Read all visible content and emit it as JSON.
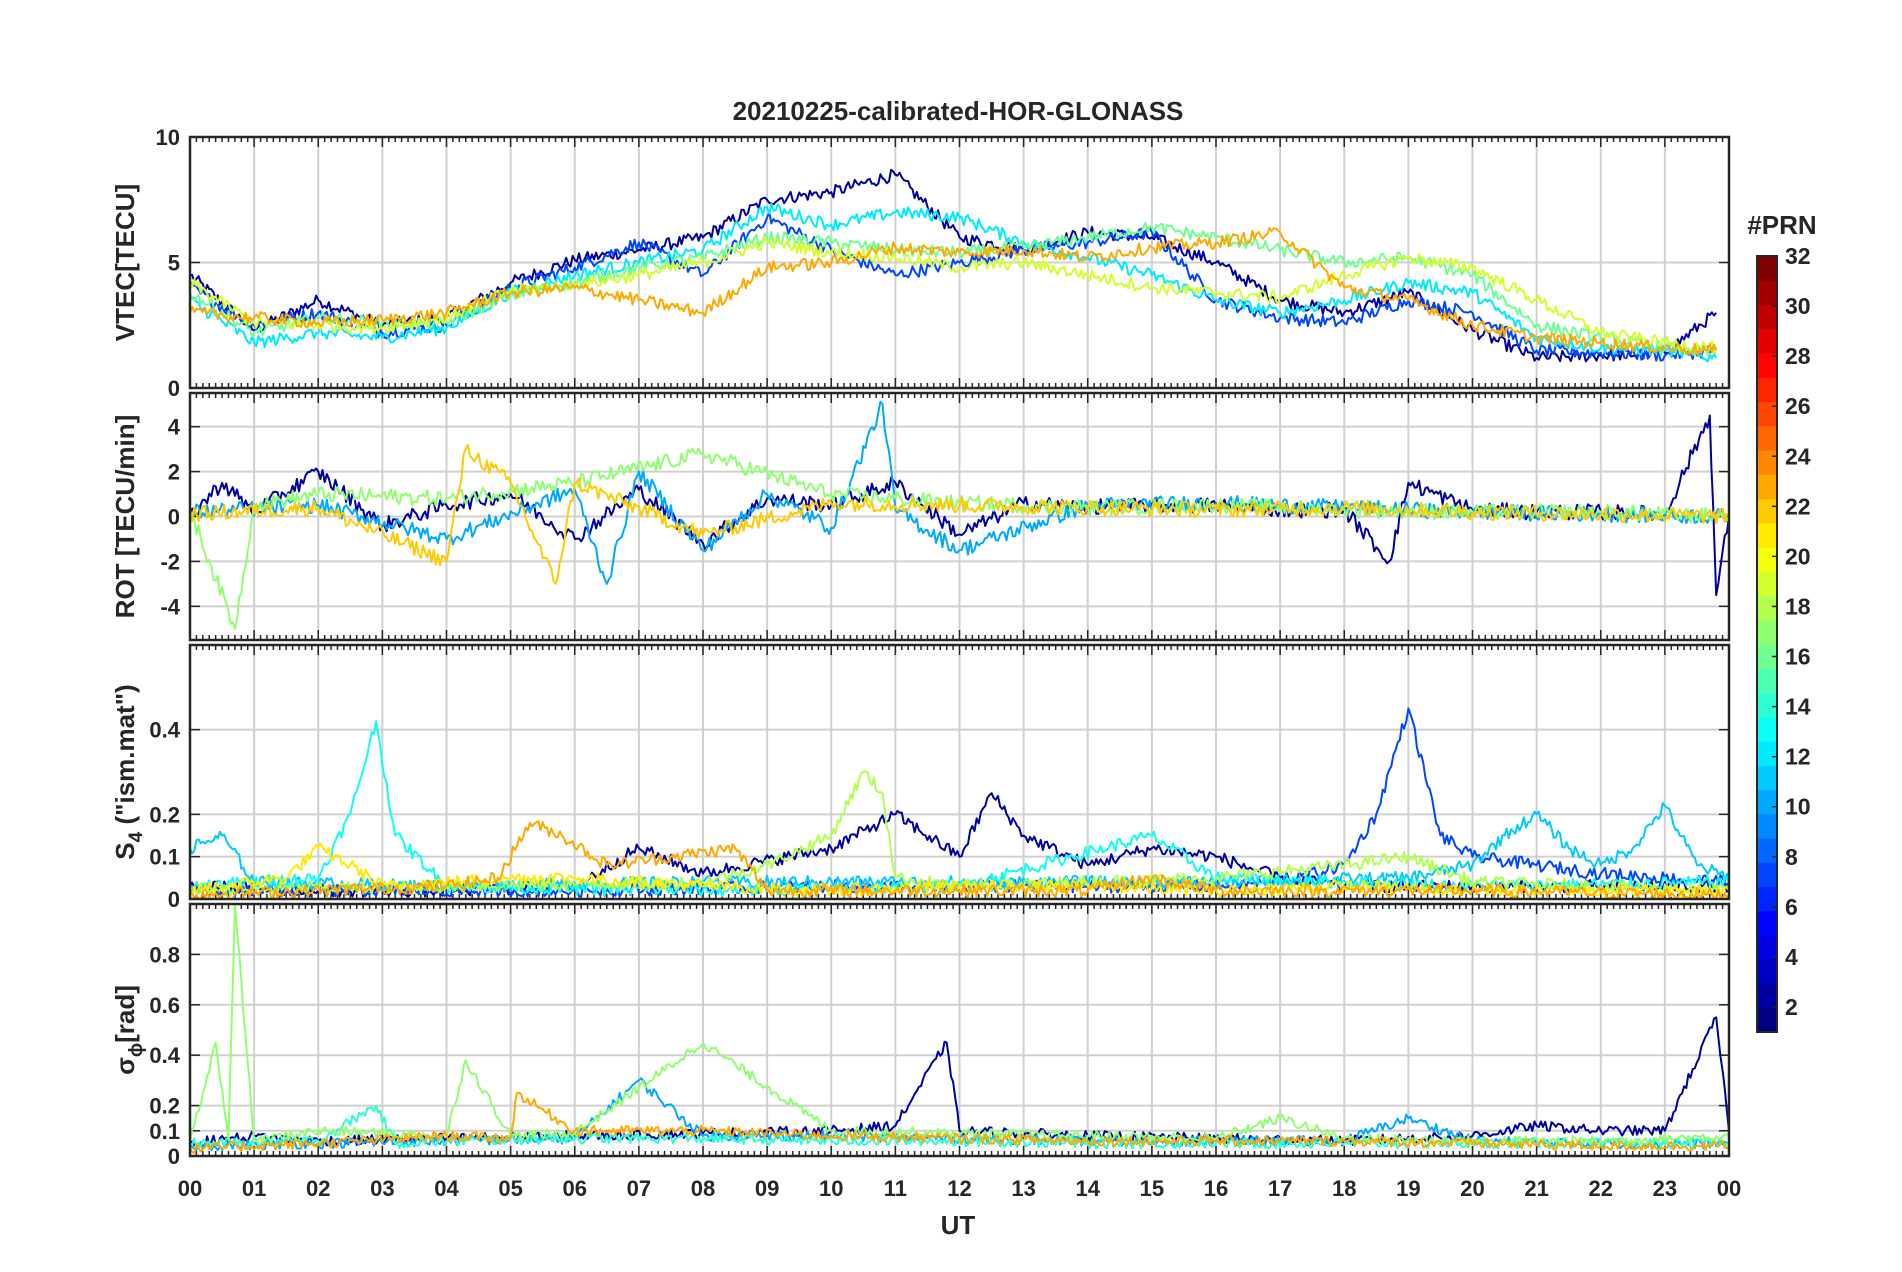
{
  "title": "20210225-calibrated-HOR-GLONASS",
  "colorbar": {
    "label": "#PRN",
    "ticks": [
      "2",
      "4",
      "6",
      "8",
      "10",
      "12",
      "14",
      "16",
      "18",
      "20",
      "22",
      "24",
      "26",
      "28",
      "30",
      "32"
    ],
    "range": [
      1,
      32
    ],
    "colormap": "jet"
  },
  "chart_data": [
    {
      "type": "line",
      "ylabel": "VTEC[TECU]",
      "ylim": [
        0,
        10
      ],
      "yticks": [
        "0",
        "5",
        "10"
      ],
      "grid": true,
      "series": [
        {
          "prn": 2,
          "x": [
            0,
            1,
            2,
            3,
            4,
            5,
            6,
            7,
            8,
            9,
            10,
            11,
            12,
            13,
            14,
            15,
            16,
            17,
            18,
            19,
            20,
            21,
            22,
            23,
            23.8
          ],
          "y": [
            4.5,
            2.3,
            3.5,
            2.5,
            2.8,
            4.2,
            5.1,
            5.5,
            6.0,
            7.5,
            7.8,
            8.5,
            6.0,
            5.5,
            6.2,
            6.0,
            5.0,
            3.5,
            3.0,
            3.8,
            2.3,
            1.2,
            1.3,
            1.4,
            3.0
          ]
        },
        {
          "prn": 7,
          "x": [
            0,
            1,
            2,
            3,
            4,
            5,
            6,
            7,
            8,
            9,
            10,
            11,
            12,
            13,
            14,
            15,
            16,
            17,
            18,
            19,
            20,
            21,
            22,
            23,
            23.8
          ],
          "y": [
            4.0,
            2.5,
            3.0,
            2.2,
            2.5,
            4.0,
            4.8,
            5.8,
            4.5,
            6.8,
            5.5,
            4.5,
            5.0,
            5.5,
            5.8,
            6.2,
            3.5,
            2.8,
            2.6,
            3.5,
            3.0,
            1.5,
            1.4,
            1.3,
            1.5
          ]
        },
        {
          "prn": 12,
          "x": [
            0,
            1,
            2,
            3,
            4,
            5,
            6,
            7,
            8,
            9,
            10,
            11,
            12,
            13,
            14,
            15,
            16,
            17,
            18,
            19,
            20,
            21,
            22,
            23,
            23.8
          ],
          "y": [
            3.5,
            1.8,
            2.2,
            2.0,
            2.4,
            3.8,
            4.5,
            5.0,
            5.5,
            7.2,
            6.5,
            7.0,
            6.8,
            5.8,
            5.2,
            4.5,
            3.5,
            3.0,
            3.5,
            4.2,
            3.8,
            2.0,
            1.6,
            1.5,
            1.2
          ]
        },
        {
          "prn": 16,
          "x": [
            0,
            1,
            2,
            3,
            4,
            5,
            6,
            7,
            8,
            9,
            10,
            11,
            12,
            13,
            14,
            15,
            16,
            17,
            18,
            19,
            20,
            21,
            22,
            23,
            23.8
          ],
          "y": [
            3.8,
            2.2,
            2.8,
            2.6,
            2.6,
            3.7,
            4.2,
            4.8,
            5.2,
            6.0,
            5.8,
            5.5,
            5.4,
            5.6,
            6.0,
            6.4,
            6.0,
            5.5,
            5.0,
            5.2,
            4.5,
            2.5,
            2.0,
            1.6,
            1.4
          ]
        },
        {
          "prn": 19,
          "x": [
            0,
            1,
            2,
            3,
            4,
            5,
            6,
            7,
            8,
            9,
            10,
            11,
            12,
            13,
            14,
            15,
            16,
            17,
            18,
            19,
            20,
            21,
            22,
            23,
            23.8
          ],
          "y": [
            4.2,
            2.6,
            2.5,
            2.4,
            2.8,
            3.9,
            4.1,
            4.5,
            5.0,
            5.8,
            5.4,
            5.2,
            4.8,
            5.0,
            4.5,
            4.0,
            3.8,
            3.6,
            4.5,
            5.2,
            4.8,
            3.5,
            2.2,
            1.8,
            1.6
          ]
        },
        {
          "prn": 23,
          "x": [
            0,
            1,
            2,
            3,
            4,
            5,
            6,
            7,
            8,
            9,
            10,
            11,
            12,
            13,
            14,
            15,
            16,
            17,
            18,
            19,
            20,
            21,
            22,
            23,
            23.8
          ],
          "y": [
            3.0,
            2.8,
            2.6,
            2.7,
            3.0,
            3.8,
            4.0,
            3.5,
            3.0,
            4.8,
            5.0,
            5.6,
            5.4,
            5.5,
            5.2,
            5.6,
            5.8,
            6.2,
            4.0,
            3.5,
            2.5,
            2.0,
            1.8,
            1.6,
            1.5
          ]
        }
      ]
    },
    {
      "type": "line",
      "ylabel": "ROT [TECU/min]",
      "ylim": [
        -5.5,
        5.5
      ],
      "yticks": [
        "-4",
        "-2",
        "0",
        "2",
        "4"
      ],
      "grid": true,
      "series": [
        {
          "prn": 2,
          "x": [
            0,
            0.5,
            1,
            2,
            3,
            4,
            5,
            6,
            7,
            8,
            9,
            10,
            11,
            12,
            13,
            14,
            15,
            16,
            17,
            18,
            18.7,
            19,
            20,
            21,
            22,
            23,
            23.7,
            23.8,
            24
          ],
          "y": [
            0,
            1.5,
            0.2,
            2.0,
            -0.4,
            0.5,
            1.0,
            -1.0,
            1.2,
            -1.2,
            0.8,
            0.5,
            1.5,
            -0.8,
            0.6,
            0.4,
            0.5,
            0.5,
            0.3,
            0.3,
            -2.0,
            1.5,
            0.3,
            0.2,
            0.2,
            0.1,
            4.5,
            -3.5,
            0
          ]
        },
        {
          "prn": 10,
          "x": [
            0,
            2,
            4,
            6,
            6.5,
            7,
            8,
            9,
            10,
            10.8,
            11,
            12,
            14,
            16,
            18,
            20,
            22,
            24
          ],
          "y": [
            0.2,
            0.5,
            -1.0,
            1.2,
            -3.0,
            2.0,
            -1.5,
            1.0,
            -0.5,
            5.0,
            0.3,
            -1.5,
            0.5,
            0.6,
            0.4,
            0.2,
            0.1,
            0
          ]
        },
        {
          "prn": 17,
          "x": [
            0,
            0.7,
            1,
            2,
            4,
            6,
            8,
            10,
            12,
            14,
            16,
            18,
            20,
            22,
            24
          ],
          "y": [
            0.3,
            -5.0,
            0.5,
            1.0,
            0.8,
            1.5,
            2.8,
            1.0,
            0.6,
            0.4,
            0.5,
            0.3,
            0.2,
            0.2,
            0
          ]
        },
        {
          "prn": 22,
          "x": [
            0,
            2,
            4,
            4.3,
            5,
            5.7,
            6,
            8,
            10,
            12,
            14,
            16,
            18,
            20,
            22,
            24
          ],
          "y": [
            0.1,
            0.4,
            -2.0,
            3.0,
            1.5,
            -3.0,
            1.5,
            -0.8,
            0.6,
            0.5,
            0.4,
            0.3,
            0.4,
            0.2,
            0.1,
            0
          ]
        }
      ]
    },
    {
      "type": "line",
      "ylabel": "S4 (\"ism.mat\")",
      "ylabel_main": "S",
      "ylabel_sub": "4",
      "ylabel_rest": " (\"ism.mat\")",
      "ylim": [
        0,
        0.6
      ],
      "yticks": [
        "0",
        "0.1",
        "0.2",
        "0.4"
      ],
      "grid": true,
      "series": [
        {
          "prn": 2,
          "x": [
            0,
            2,
            4,
            6,
            7,
            8,
            10,
            11,
            12,
            12.5,
            13,
            14,
            15,
            16,
            17,
            18,
            20,
            22,
            24
          ],
          "y": [
            0.03,
            0.02,
            0.02,
            0.03,
            0.12,
            0.06,
            0.12,
            0.2,
            0.1,
            0.25,
            0.15,
            0.08,
            0.12,
            0.1,
            0.05,
            0.03,
            0.03,
            0.03,
            0.03
          ]
        },
        {
          "prn": 7,
          "x": [
            0,
            2,
            6,
            10,
            16,
            17,
            18,
            18.5,
            19,
            19.5,
            20,
            21,
            22,
            23,
            24
          ],
          "y": [
            0.02,
            0.02,
            0.02,
            0.03,
            0.03,
            0.04,
            0.08,
            0.2,
            0.45,
            0.15,
            0.1,
            0.08,
            0.06,
            0.05,
            0.04
          ]
        },
        {
          "prn": 11,
          "x": [
            0,
            0.5,
            1,
            4,
            8,
            12,
            16,
            19,
            20,
            20.5,
            21,
            21.5,
            22,
            22.5,
            23,
            23.5,
            24
          ],
          "y": [
            0.12,
            0.15,
            0.04,
            0.03,
            0.04,
            0.04,
            0.04,
            0.05,
            0.08,
            0.15,
            0.2,
            0.12,
            0.08,
            0.12,
            0.22,
            0.08,
            0.05
          ]
        },
        {
          "prn": 13,
          "x": [
            0,
            2,
            2.5,
            2.9,
            3.2,
            4,
            8,
            12,
            15,
            16,
            20,
            24
          ],
          "y": [
            0.03,
            0.05,
            0.2,
            0.42,
            0.15,
            0.03,
            0.02,
            0.03,
            0.15,
            0.05,
            0.03,
            0.04
          ]
        },
        {
          "prn": 18,
          "x": [
            0,
            4,
            8,
            9,
            10,
            10.5,
            10.8,
            11,
            12,
            16,
            18,
            19,
            20,
            24
          ],
          "y": [
            0.02,
            0.03,
            0.04,
            0.08,
            0.15,
            0.3,
            0.25,
            0.05,
            0.03,
            0.05,
            0.08,
            0.1,
            0.04,
            0.02
          ]
        },
        {
          "prn": 21,
          "x": [
            0,
            1.5,
            2,
            2.5,
            3,
            4,
            5,
            6,
            8,
            10,
            12,
            14,
            16,
            18,
            20,
            24
          ],
          "y": [
            0.02,
            0.05,
            0.12,
            0.08,
            0.03,
            0.04,
            0.05,
            0.05,
            0.03,
            0.02,
            0.03,
            0.03,
            0.02,
            0.03,
            0.02,
            0.02
          ]
        },
        {
          "prn": 23,
          "x": [
            0,
            4,
            4.8,
            5.3,
            5.8,
            6.5,
            7.5,
            8.5,
            9,
            12,
            14,
            15,
            16,
            20,
            24
          ],
          "y": [
            0.01,
            0.03,
            0.05,
            0.18,
            0.15,
            0.08,
            0.1,
            0.12,
            0.02,
            0.02,
            0.02,
            0.05,
            0.02,
            0.02,
            0.01
          ]
        }
      ]
    },
    {
      "type": "line",
      "ylabel": "σφ[rad]",
      "ylabel_main": "σ",
      "ylabel_sub": "ϕ",
      "ylabel_rest": "[rad]",
      "ylim": [
        0,
        1.0
      ],
      "yticks": [
        "0",
        "0.1",
        "0.2",
        "0.4",
        "0.6",
        "0.8"
      ],
      "grid": true,
      "series": [
        {
          "prn": 2,
          "x": [
            0,
            1,
            2,
            4,
            6,
            8,
            10,
            11,
            11.8,
            12,
            14,
            16,
            18,
            20,
            21,
            22,
            23,
            23.8,
            24
          ],
          "y": [
            0.05,
            0.08,
            0.06,
            0.07,
            0.08,
            0.09,
            0.1,
            0.12,
            0.45,
            0.1,
            0.08,
            0.07,
            0.06,
            0.08,
            0.12,
            0.1,
            0.1,
            0.55,
            0.1
          ]
        },
        {
          "prn": 10,
          "x": [
            0,
            2,
            4,
            6,
            7,
            8,
            10,
            12,
            14,
            16,
            18,
            19,
            20,
            22,
            24
          ],
          "y": [
            0.04,
            0.05,
            0.06,
            0.07,
            0.3,
            0.08,
            0.08,
            0.07,
            0.06,
            0.06,
            0.06,
            0.15,
            0.06,
            0.05,
            0.05
          ]
        },
        {
          "prn": 14,
          "x": [
            0,
            2,
            2.9,
            3.2,
            4,
            6,
            8,
            10,
            12,
            14,
            16,
            18,
            20,
            22,
            24
          ],
          "y": [
            0.05,
            0.06,
            0.2,
            0.05,
            0.06,
            0.07,
            0.07,
            0.06,
            0.06,
            0.05,
            0.05,
            0.05,
            0.05,
            0.05,
            0.05
          ]
        },
        {
          "prn": 17,
          "x": [
            0,
            0.4,
            0.6,
            0.7,
            1,
            2,
            4,
            4.3,
            5,
            6,
            8,
            10,
            12,
            14,
            16,
            17,
            18,
            20,
            22,
            24
          ],
          "y": [
            0.06,
            0.45,
            0.06,
            1.0,
            0.06,
            0.1,
            0.08,
            0.38,
            0.08,
            0.09,
            0.45,
            0.1,
            0.09,
            0.08,
            0.07,
            0.15,
            0.07,
            0.06,
            0.06,
            0.08
          ]
        },
        {
          "prn": 23,
          "x": [
            0,
            2,
            4,
            5,
            5.1,
            6,
            8,
            10,
            12,
            14,
            16,
            18,
            20,
            22,
            24
          ],
          "y": [
            0.03,
            0.05,
            0.08,
            0.07,
            0.25,
            0.1,
            0.1,
            0.08,
            0.07,
            0.06,
            0.06,
            0.06,
            0.05,
            0.04,
            0.04
          ]
        }
      ]
    }
  ],
  "xaxis": {
    "label": "UT",
    "range": [
      0,
      24
    ],
    "ticks": [
      "00",
      "01",
      "02",
      "03",
      "04",
      "05",
      "06",
      "07",
      "08",
      "09",
      "10",
      "11",
      "12",
      "13",
      "14",
      "15",
      "16",
      "17",
      "18",
      "19",
      "20",
      "21",
      "22",
      "23",
      "00"
    ]
  }
}
